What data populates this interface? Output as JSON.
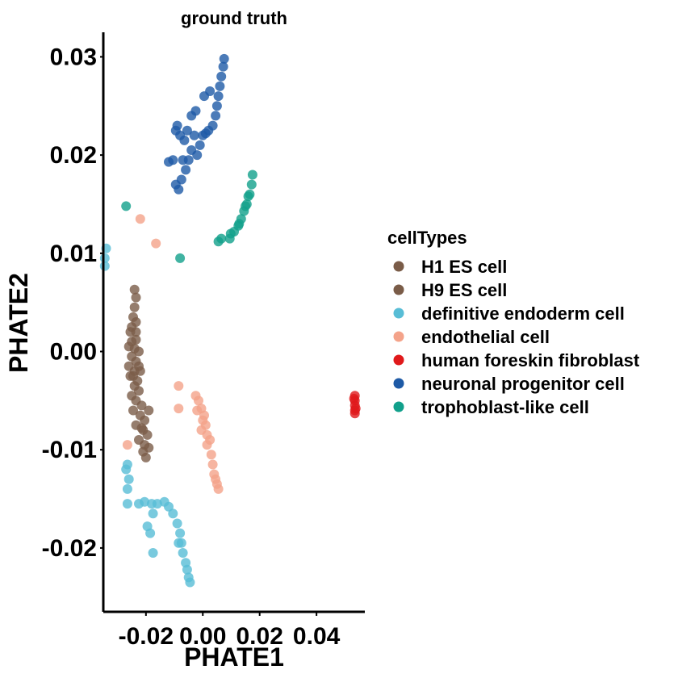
{
  "chart_data": {
    "type": "scatter",
    "title": "ground truth",
    "xlabel": "PHATE1",
    "ylabel": "PHATE2",
    "xlim": [
      -0.035,
      0.057
    ],
    "ylim": [
      -0.0265,
      0.0325
    ],
    "x_ticks": [
      -0.02,
      0.0,
      0.02,
      0.04
    ],
    "x_tick_labels": [
      "-0.02",
      "0.00",
      "0.02",
      "0.04"
    ],
    "y_ticks": [
      -0.02,
      -0.01,
      0.0,
      0.01,
      0.02,
      0.03
    ],
    "y_tick_labels": [
      "-0.02",
      "-0.01",
      "0.00",
      "0.01",
      "0.02",
      "0.03"
    ],
    "grid": false,
    "legend": {
      "title": "cellTypes",
      "position": "right"
    },
    "series": [
      {
        "name": "H1 ES cell",
        "color": "#7a5c48",
        "approximate": true,
        "points": [
          [
            -0.024,
            0.0063
          ],
          [
            -0.0235,
            0.0055
          ],
          [
            -0.024,
            0.0045
          ],
          [
            -0.0245,
            0.0035
          ],
          [
            -0.0235,
            0.003
          ],
          [
            -0.025,
            0.0025
          ],
          [
            -0.0255,
            0.002
          ],
          [
            -0.0235,
            0.002
          ],
          [
            -0.025,
            0.001
          ],
          [
            -0.0235,
            0.0012
          ],
          [
            -0.026,
            0.0005
          ],
          [
            -0.024,
            0.0003
          ],
          [
            -0.0225,
            0.0
          ],
          [
            -0.025,
            -0.0005
          ],
          [
            -0.0235,
            -0.001
          ],
          [
            -0.026,
            -0.0015
          ],
          [
            -0.024,
            -0.002
          ],
          [
            -0.022,
            -0.002
          ],
          [
            -0.0255,
            -0.0025
          ],
          [
            -0.023,
            -0.003
          ]
        ]
      },
      {
        "name": "H9 ES cell",
        "color": "#7a5c48",
        "approximate": true,
        "points": [
          [
            -0.024,
            -0.0035
          ],
          [
            -0.0225,
            -0.004
          ],
          [
            -0.025,
            -0.0045
          ],
          [
            -0.0235,
            -0.005
          ],
          [
            -0.0215,
            -0.0055
          ],
          [
            -0.0245,
            -0.006
          ],
          [
            -0.022,
            -0.0065
          ],
          [
            -0.0205,
            -0.007
          ],
          [
            -0.0235,
            -0.0075
          ],
          [
            -0.021,
            -0.008
          ],
          [
            -0.0195,
            -0.0085
          ],
          [
            -0.0225,
            -0.009
          ],
          [
            -0.0205,
            -0.0095
          ],
          [
            -0.019,
            -0.0098
          ],
          [
            -0.021,
            -0.0102
          ],
          [
            -0.02,
            -0.0108
          ],
          [
            -0.0215,
            -0.0078
          ],
          [
            -0.019,
            -0.006
          ],
          [
            -0.0245,
            -0.0025
          ],
          [
            -0.0225,
            -0.0015
          ]
        ]
      },
      {
        "name": "definitive endoderm cell",
        "color": "#58bdd6",
        "approximate": true,
        "points": [
          [
            -0.034,
            0.0105
          ],
          [
            -0.0345,
            0.0095
          ],
          [
            -0.0345,
            0.0087
          ],
          [
            -0.0265,
            -0.0115
          ],
          [
            -0.027,
            -0.012
          ],
          [
            -0.026,
            -0.013
          ],
          [
            -0.0265,
            -0.014
          ],
          [
            -0.0265,
            -0.0155
          ],
          [
            -0.0205,
            -0.0153
          ],
          [
            -0.018,
            -0.0155
          ],
          [
            -0.016,
            -0.0155
          ],
          [
            -0.0135,
            -0.0153
          ],
          [
            -0.012,
            -0.0158
          ],
          [
            -0.0105,
            -0.0165
          ],
          [
            -0.009,
            -0.0175
          ],
          [
            -0.008,
            -0.0185
          ],
          [
            -0.0075,
            -0.0195
          ],
          [
            -0.007,
            -0.0205
          ],
          [
            -0.006,
            -0.0215
          ],
          [
            -0.0055,
            -0.0222
          ],
          [
            -0.005,
            -0.023
          ],
          [
            -0.0045,
            -0.0235
          ],
          [
            -0.0085,
            -0.0195
          ],
          [
            -0.0175,
            -0.0165
          ],
          [
            -0.0195,
            -0.0178
          ],
          [
            -0.0185,
            -0.0185
          ],
          [
            -0.0175,
            -0.0205
          ],
          [
            -0.0225,
            -0.0155
          ]
        ]
      },
      {
        "name": "endothelial cell",
        "color": "#f4a38a",
        "approximate": true,
        "points": [
          [
            -0.022,
            0.0135
          ],
          [
            -0.0165,
            0.011
          ],
          [
            -0.0085,
            -0.0035
          ],
          [
            -0.0085,
            -0.0058
          ],
          [
            -0.0265,
            -0.0095
          ],
          [
            -0.0025,
            -0.0045
          ],
          [
            -0.0015,
            -0.005
          ],
          [
            -0.0005,
            -0.0058
          ],
          [
            0.0005,
            -0.0065
          ],
          [
            0.001,
            -0.0075
          ],
          [
            -0.0005,
            -0.008
          ],
          [
            0.0015,
            -0.0085
          ],
          [
            0.0025,
            -0.009
          ],
          [
            0.0015,
            -0.0095
          ],
          [
            0.003,
            -0.0105
          ],
          [
            0.0035,
            -0.0115
          ],
          [
            0.004,
            -0.0125
          ],
          [
            0.0045,
            -0.013
          ],
          [
            0.005,
            -0.0135
          ],
          [
            0.0055,
            -0.014
          ],
          [
            -0.002,
            -0.006
          ],
          [
            0.0,
            -0.007
          ]
        ]
      },
      {
        "name": "human foreskin fibroblast",
        "color": "#e0191b",
        "approximate": true,
        "points": [
          [
            0.0535,
            -0.0045
          ],
          [
            0.0535,
            -0.005
          ],
          [
            0.0535,
            -0.0055
          ],
          [
            0.0535,
            -0.006
          ],
          [
            0.0535,
            -0.0063
          ],
          [
            0.0532,
            -0.0048
          ],
          [
            0.0538,
            -0.0058
          ]
        ]
      },
      {
        "name": "neuronal progenitor cell",
        "color": "#1e5aa6",
        "approximate": true,
        "points": [
          [
            0.0075,
            0.0298
          ],
          [
            0.0072,
            0.029
          ],
          [
            0.0065,
            0.028
          ],
          [
            0.006,
            0.027
          ],
          [
            0.0055,
            0.026
          ],
          [
            0.005,
            0.025
          ],
          [
            0.0045,
            0.024
          ],
          [
            0.0035,
            0.023
          ],
          [
            0.002,
            0.0225
          ],
          [
            0.001,
            0.0222
          ],
          [
            0.0,
            0.022
          ],
          [
            -0.001,
            0.021
          ],
          [
            -0.002,
            0.02
          ],
          [
            -0.004,
            0.0205
          ],
          [
            -0.0065,
            0.0215
          ],
          [
            -0.008,
            0.022
          ],
          [
            -0.009,
            0.023
          ],
          [
            -0.0095,
            0.0225
          ],
          [
            -0.005,
            0.0195
          ],
          [
            -0.006,
            0.0185
          ],
          [
            -0.0075,
            0.0175
          ],
          [
            -0.0085,
            0.0165
          ],
          [
            -0.0095,
            0.017
          ],
          [
            -0.0105,
            0.0195
          ],
          [
            -0.012,
            0.0193
          ],
          [
            -0.0025,
            0.0245
          ],
          [
            -0.004,
            0.024
          ],
          [
            0.0005,
            0.026
          ],
          [
            0.0025,
            0.0265
          ],
          [
            -0.007,
            0.0195
          ],
          [
            -0.003,
            0.022
          ],
          [
            -0.0055,
            0.0225
          ]
        ]
      },
      {
        "name": "trophoblast-like cell",
        "color": "#11a08b",
        "approximate": true,
        "points": [
          [
            0.0175,
            0.018
          ],
          [
            0.0172,
            0.017
          ],
          [
            0.0165,
            0.016
          ],
          [
            0.0155,
            0.015
          ],
          [
            0.0145,
            0.0143
          ],
          [
            0.0135,
            0.0135
          ],
          [
            0.0125,
            0.0128
          ],
          [
            0.011,
            0.0122
          ],
          [
            0.0095,
            0.0115
          ],
          [
            0.0065,
            0.0115
          ],
          [
            0.0055,
            0.0112
          ],
          [
            0.016,
            0.0158
          ],
          [
            0.015,
            0.0148
          ],
          [
            -0.008,
            0.0095
          ],
          [
            -0.027,
            0.0148
          ],
          [
            0.0128,
            0.013
          ],
          [
            0.0098,
            0.012
          ]
        ]
      }
    ],
    "legend_entries": [
      {
        "name": "H1 ES cell",
        "color": "#7a5c48"
      },
      {
        "name": "H9 ES cell",
        "color": "#7a5c48"
      },
      {
        "name": "definitive endoderm cell",
        "color": "#58bdd6"
      },
      {
        "name": "endothelial cell",
        "color": "#f4a38a"
      },
      {
        "name": "human foreskin fibroblast",
        "color": "#e0191b"
      },
      {
        "name": "neuronal progenitor cell",
        "color": "#1e5aa6"
      },
      {
        "name": "trophoblast-like cell",
        "color": "#11a08b"
      }
    ]
  }
}
